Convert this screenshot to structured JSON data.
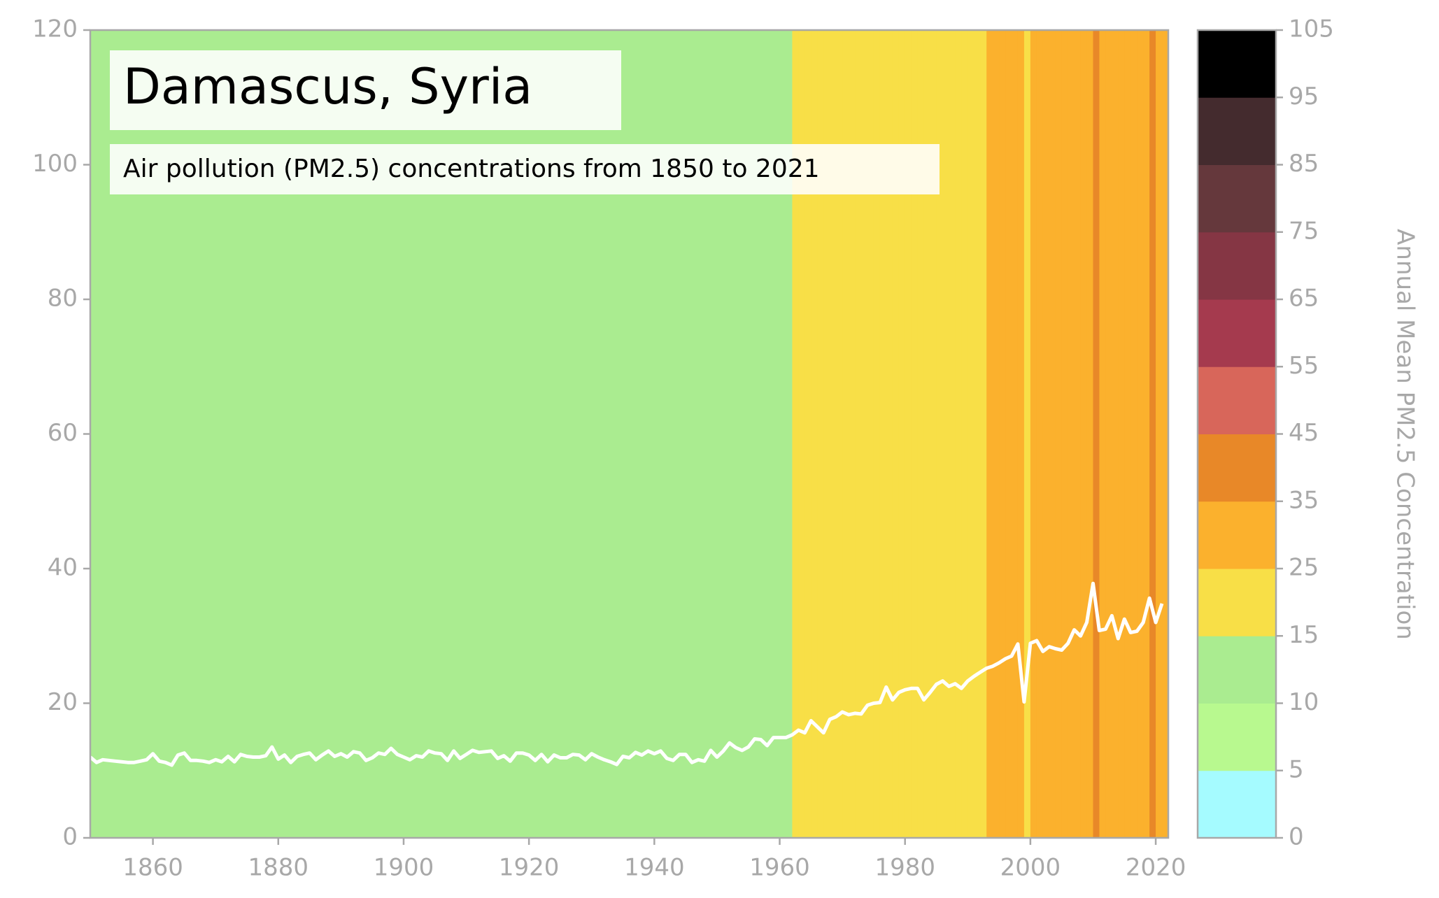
{
  "chart_data": {
    "type": "line",
    "title": "Damascus, Syria",
    "subtitle": "Air pollution (PM2.5) concentrations from 1850 to 2021",
    "x": [
      1850,
      1851,
      1852,
      1853,
      1854,
      1855,
      1856,
      1857,
      1858,
      1859,
      1860,
      1861,
      1862,
      1863,
      1864,
      1865,
      1866,
      1867,
      1868,
      1869,
      1870,
      1871,
      1872,
      1873,
      1874,
      1875,
      1876,
      1877,
      1878,
      1879,
      1880,
      1881,
      1882,
      1883,
      1884,
      1885,
      1886,
      1887,
      1888,
      1889,
      1890,
      1891,
      1892,
      1893,
      1894,
      1895,
      1896,
      1897,
      1898,
      1899,
      1900,
      1901,
      1902,
      1903,
      1904,
      1905,
      1906,
      1907,
      1908,
      1909,
      1910,
      1911,
      1912,
      1913,
      1914,
      1915,
      1916,
      1917,
      1918,
      1919,
      1920,
      1921,
      1922,
      1923,
      1924,
      1925,
      1926,
      1927,
      1928,
      1929,
      1930,
      1931,
      1932,
      1933,
      1934,
      1935,
      1936,
      1937,
      1938,
      1939,
      1940,
      1941,
      1942,
      1943,
      1944,
      1945,
      1946,
      1947,
      1948,
      1949,
      1950,
      1951,
      1952,
      1953,
      1954,
      1955,
      1956,
      1957,
      1958,
      1959,
      1960,
      1961,
      1962,
      1963,
      1964,
      1965,
      1966,
      1967,
      1968,
      1969,
      1970,
      1971,
      1972,
      1973,
      1974,
      1975,
      1976,
      1977,
      1978,
      1979,
      1980,
      1981,
      1982,
      1983,
      1984,
      1985,
      1986,
      1987,
      1988,
      1989,
      1990,
      1991,
      1992,
      1993,
      1994,
      1995,
      1996,
      1997,
      1998,
      1999,
      2000,
      2001,
      2002,
      2003,
      2004,
      2005,
      2006,
      2007,
      2008,
      2009,
      2010,
      2011,
      2012,
      2013,
      2014,
      2015,
      2016,
      2017,
      2018,
      2019,
      2020,
      2021
    ],
    "values": [
      12.0,
      11.2,
      11.6,
      11.5,
      11.4,
      11.3,
      11.2,
      11.2,
      11.4,
      11.6,
      12.5,
      11.4,
      11.2,
      10.8,
      12.3,
      12.6,
      11.5,
      11.5,
      11.4,
      11.2,
      11.6,
      11.3,
      12.1,
      11.3,
      12.4,
      12.1,
      12.0,
      12.0,
      12.2,
      13.5,
      11.7,
      12.3,
      11.2,
      12.1,
      12.4,
      12.6,
      11.6,
      12.3,
      12.9,
      12.1,
      12.5,
      12.0,
      12.8,
      12.6,
      11.5,
      11.9,
      12.6,
      12.4,
      13.3,
      12.4,
      12.0,
      11.6,
      12.2,
      12.0,
      12.9,
      12.6,
      12.5,
      11.5,
      12.9,
      11.8,
      12.4,
      13.0,
      12.7,
      12.8,
      12.9,
      11.8,
      12.2,
      11.4,
      12.6,
      12.6,
      12.3,
      11.5,
      12.4,
      11.3,
      12.3,
      11.9,
      11.9,
      12.4,
      12.3,
      11.6,
      12.5,
      12.0,
      11.6,
      11.3,
      10.9,
      12.1,
      11.9,
      12.7,
      12.3,
      12.9,
      12.5,
      12.9,
      11.8,
      11.5,
      12.4,
      12.4,
      11.2,
      11.6,
      11.4,
      13.0,
      12.0,
      12.9,
      14.1,
      13.4,
      13.0,
      13.5,
      14.7,
      14.6,
      13.7,
      14.9,
      14.9,
      14.9,
      15.3,
      16.0,
      15.6,
      17.4,
      16.5,
      15.6,
      17.6,
      18.0,
      18.7,
      18.3,
      18.5,
      18.4,
      19.7,
      20.0,
      20.1,
      22.4,
      20.5,
      21.6,
      22.0,
      22.2,
      22.2,
      20.5,
      21.6,
      22.8,
      23.3,
      22.5,
      22.9,
      22.2,
      23.3,
      24.0,
      24.6,
      25.2,
      25.5,
      26.0,
      26.6,
      27.0,
      28.8,
      20.2,
      28.9,
      29.3,
      27.7,
      28.4,
      28.1,
      27.9,
      28.9,
      30.9,
      30.0,
      32.0,
      37.8,
      30.8,
      31.0,
      33.0,
      29.6,
      32.5,
      30.5,
      30.7,
      32.0,
      35.6,
      32.0,
      34.8
    ],
    "color": "#ffffff",
    "xlim": [
      1850,
      2022
    ],
    "xticks": [
      1860,
      1880,
      1900,
      1920,
      1940,
      1960,
      1980,
      2000,
      2020
    ],
    "ylim": [
      0,
      120
    ],
    "yticks": [
      0,
      20,
      40,
      60,
      80,
      100,
      120
    ],
    "colorbar": {
      "label": "Annual Mean PM2.5 Concentration",
      "bounds": [
        0,
        5,
        10,
        15,
        25,
        35,
        45,
        55,
        65,
        75,
        85,
        95,
        105
      ],
      "colors": [
        "#a5fbff",
        "#b8f98f",
        "#aaec90",
        "#f8df47",
        "#fbb12d",
        "#e88828",
        "#d8665a",
        "#a53a4e",
        "#853644",
        "#65383c",
        "#442b2e",
        "#000000"
      ]
    }
  }
}
